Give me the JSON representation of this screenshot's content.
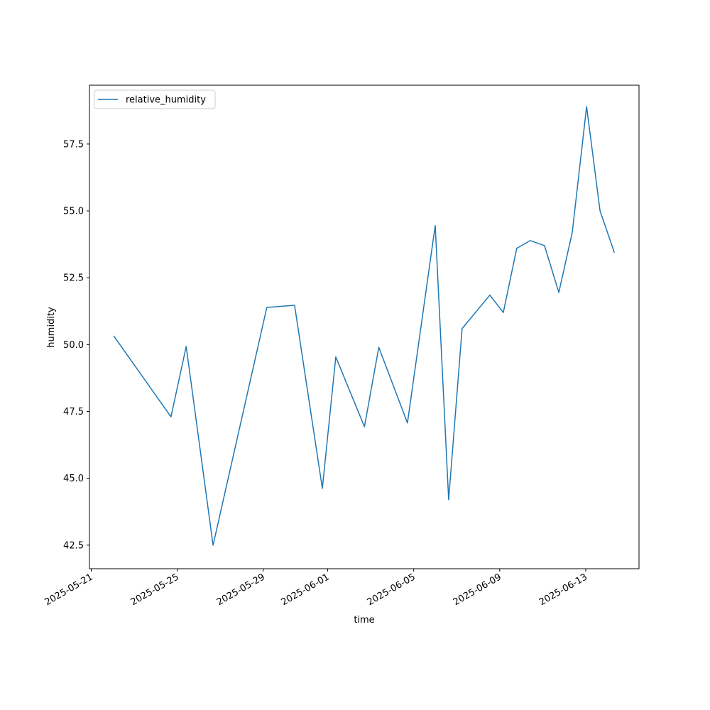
{
  "chart_data": {
    "type": "line",
    "x": [
      "2025-05-22 01:00",
      "2025-05-24 17:00",
      "2025-05-25 10:00",
      "2025-05-26 16:00",
      "2025-05-29 04:00",
      "2025-05-30 11:00",
      "2025-05-31 18:00",
      "2025-06-01 09:00",
      "2025-06-02 17:00",
      "2025-06-03 09:00",
      "2025-06-04 17:00",
      "2025-06-06 00:00",
      "2025-06-06 15:00",
      "2025-06-07 06:00",
      "2025-06-08 13:00",
      "2025-06-09 04:00",
      "2025-06-09 19:00",
      "2025-06-10 10:00",
      "2025-06-11 02:00",
      "2025-06-11 18:00",
      "2025-06-12 09:00",
      "2025-06-13 01:00",
      "2025-06-13 16:00",
      "2025-06-14 08:00"
    ],
    "series": [
      {
        "name": "relative_humidity",
        "color": "#1f77b4",
        "values": [
          50.33,
          47.3,
          49.93,
          42.5,
          51.39,
          51.47,
          44.62,
          49.54,
          46.93,
          49.9,
          47.07,
          54.45,
          44.2,
          50.6,
          51.85,
          51.2,
          53.6,
          53.89,
          53.7,
          51.95,
          54.2,
          58.9,
          55.0,
          53.44
        ]
      }
    ],
    "xlabel": "time",
    "ylabel": "humidity",
    "xlim": [
      "2025-05-20 22:00",
      "2025-06-15 11:30"
    ],
    "xticks": [
      "2025-05-21",
      "2025-05-25",
      "2025-05-29",
      "2025-06-01",
      "2025-06-05",
      "2025-06-09",
      "2025-06-13"
    ],
    "ylim": [
      41.62,
      59.7
    ],
    "yticks": [
      42.5,
      {
        "value": 45,
        "label": "45.0"
      },
      47.5,
      {
        "value": 50,
        "label": "50.0"
      },
      52.5,
      {
        "value": 55,
        "label": "55.0"
      },
      57.5
    ],
    "legend": "upper left"
  }
}
